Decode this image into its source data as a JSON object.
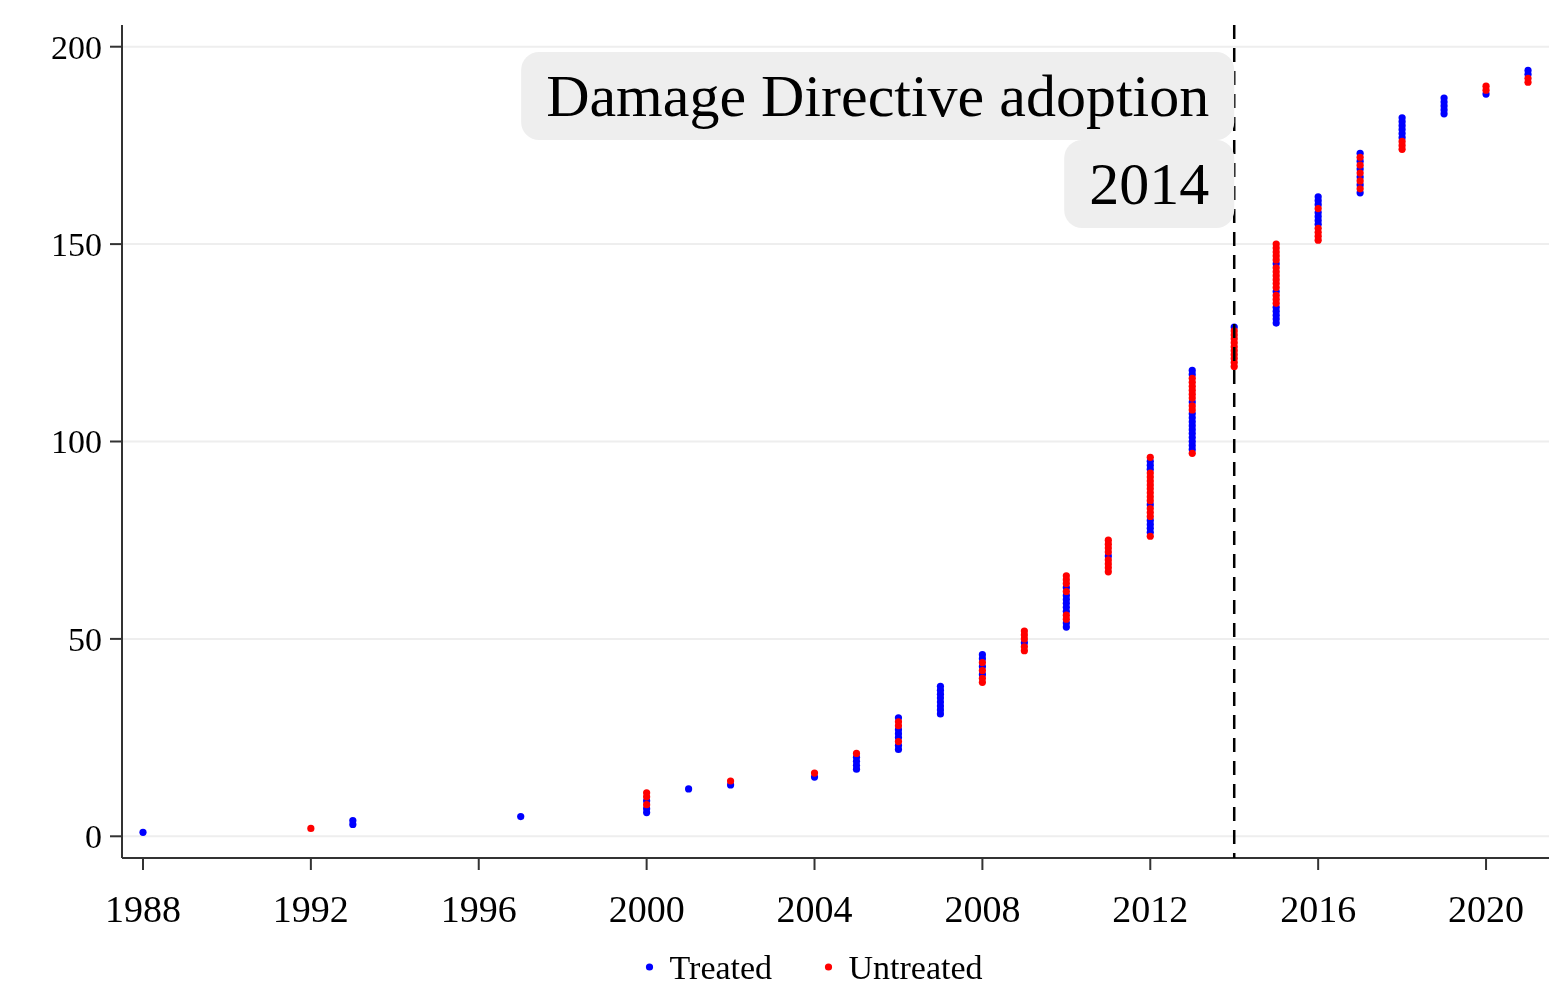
{
  "chart_data": {
    "type": "scatter",
    "marker": "circle",
    "grid": "y",
    "legend": "bottom",
    "xlim": [
      1987.5,
      2021.5
    ],
    "xticks": [
      1988,
      1992,
      1996,
      2000,
      2004,
      2008,
      2012,
      2016,
      2020
    ],
    "ylim": [
      -5.5,
      205.5
    ],
    "yticks": [
      0,
      50,
      100,
      150,
      200
    ],
    "ref_lines": [
      {
        "axis": "x",
        "value": 2014,
        "label": "Damage Directive adoption\n2014",
        "color": "#000000",
        "line_style": "dashed"
      }
    ],
    "series": [
      {
        "name": "Treated",
        "color": "#0000ff",
        "x": [
          1988,
          1993,
          1993,
          1997,
          2000,
          2000,
          2000,
          2001,
          2002,
          2004,
          2005,
          2005,
          2005,
          2005,
          2006,
          2006,
          2006,
          2006,
          2006,
          2006,
          2007,
          2007,
          2007,
          2007,
          2007,
          2007,
          2007,
          2007,
          2008,
          2008,
          2008,
          2008,
          2009,
          2010,
          2010,
          2010,
          2010,
          2010,
          2010,
          2010,
          2010,
          2011,
          2012,
          2012,
          2012,
          2012,
          2012,
          2012,
          2012,
          2012,
          2013,
          2013,
          2013,
          2013,
          2013,
          2013,
          2013,
          2013,
          2013,
          2013,
          2013,
          2013,
          2013,
          2014,
          2015,
          2015,
          2015,
          2015,
          2015,
          2015,
          2015,
          2016,
          2016,
          2016,
          2016,
          2016,
          2016,
          2016,
          2017,
          2017,
          2017,
          2017,
          2017,
          2017,
          2018,
          2018,
          2018,
          2018,
          2018,
          2018,
          2019,
          2019,
          2019,
          2019,
          2019,
          2020,
          2021,
          2021
        ],
        "values": [
          1,
          3,
          4,
          5,
          6,
          7,
          9,
          12,
          13,
          15,
          17,
          18,
          19,
          20,
          22,
          23,
          25,
          26,
          27,
          30,
          31,
          32,
          33,
          34,
          35,
          36,
          37,
          38,
          41,
          43,
          45,
          46,
          49,
          53,
          54,
          57,
          58,
          59,
          60,
          61,
          63,
          71,
          77,
          78,
          79,
          80,
          84,
          93,
          94,
          95,
          98,
          99,
          100,
          101,
          102,
          103,
          104,
          105,
          106,
          107,
          110,
          117,
          118,
          129,
          130,
          131,
          132,
          133,
          134,
          138,
          145,
          155,
          156,
          157,
          158,
          160,
          161,
          162,
          163,
          165,
          167,
          169,
          171,
          173,
          177,
          178,
          179,
          180,
          181,
          182,
          183,
          184,
          185,
          186,
          187,
          188,
          193,
          194
        ]
      },
      {
        "name": "Untreated",
        "color": "#ff0000",
        "x": [
          1992,
          2000,
          2000,
          2000,
          2002,
          2004,
          2005,
          2006,
          2006,
          2006,
          2008,
          2008,
          2008,
          2008,
          2009,
          2009,
          2009,
          2009,
          2009,
          2010,
          2010,
          2010,
          2010,
          2010,
          2010,
          2011,
          2011,
          2011,
          2011,
          2011,
          2011,
          2011,
          2011,
          2012,
          2012,
          2012,
          2012,
          2012,
          2012,
          2012,
          2012,
          2012,
          2012,
          2012,
          2012,
          2012,
          2013,
          2013,
          2013,
          2013,
          2013,
          2013,
          2013,
          2013,
          2013,
          2014,
          2014,
          2014,
          2014,
          2014,
          2014,
          2014,
          2014,
          2014,
          2014,
          2015,
          2015,
          2015,
          2015,
          2015,
          2015,
          2015,
          2015,
          2015,
          2015,
          2015,
          2015,
          2015,
          2015,
          2016,
          2016,
          2016,
          2016,
          2016,
          2017,
          2017,
          2017,
          2017,
          2017,
          2018,
          2018,
          2018,
          2020,
          2020,
          2021,
          2021
        ],
        "values": [
          2,
          8,
          10,
          11,
          14,
          16,
          21,
          24,
          28,
          29,
          39,
          40,
          42,
          44,
          47,
          48,
          50,
          51,
          52,
          55,
          56,
          62,
          64,
          65,
          66,
          67,
          68,
          69,
          70,
          72,
          73,
          74,
          75,
          76,
          81,
          82,
          83,
          85,
          86,
          87,
          88,
          89,
          90,
          91,
          92,
          96,
          97,
          108,
          109,
          111,
          112,
          113,
          114,
          115,
          116,
          119,
          120,
          121,
          122,
          123,
          124,
          125,
          126,
          127,
          128,
          135,
          136,
          137,
          139,
          140,
          141,
          142,
          143,
          144,
          146,
          147,
          148,
          149,
          150,
          151,
          152,
          153,
          154,
          159,
          164,
          166,
          168,
          170,
          172,
          174,
          175,
          176,
          189,
          190,
          191,
          192
        ]
      }
    ]
  }
}
